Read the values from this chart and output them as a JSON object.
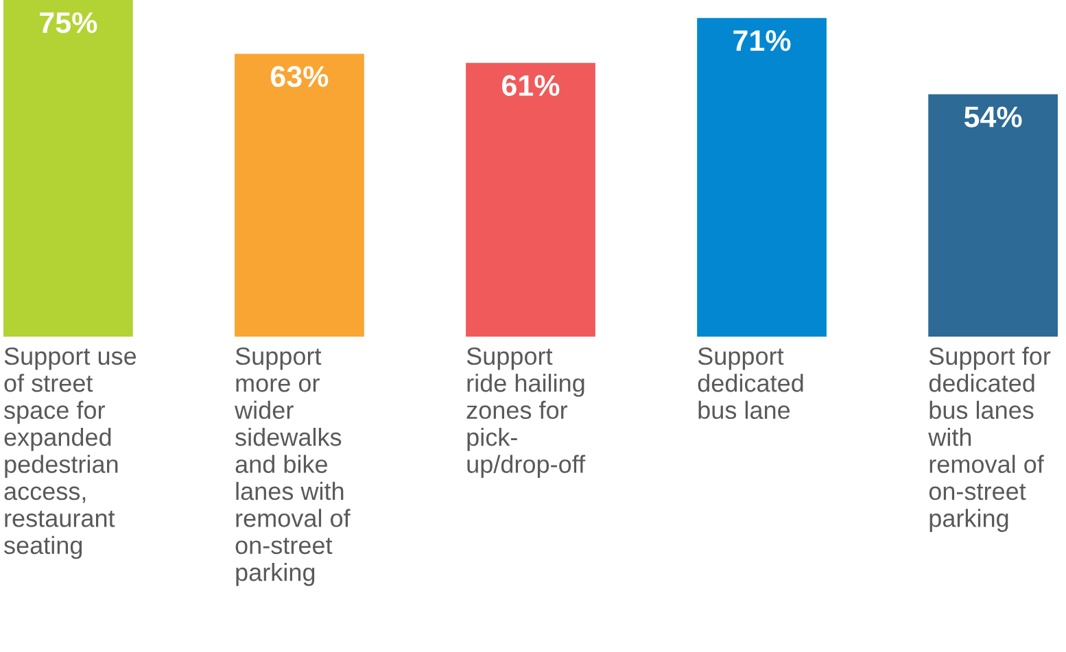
{
  "chart_data": {
    "type": "bar",
    "categories": [
      "Support use\nof street\nspace for\nexpanded\npedestrian\naccess,\nrestaurant\nseating",
      "Support\nmore or\nwider\nsidewalks\nand bike\nlanes with\nremoval of\non-street\nparking",
      "Support\nride hailing\nzones for\npick-\nup/drop-off",
      "Support\ndedicated\nbus lane",
      "Support for\ndedicated\nbus lanes\nwith\nremoval of\non-street\nparking"
    ],
    "values": [
      75,
      63,
      61,
      71,
      54
    ],
    "colors": [
      "#b3d335",
      "#f9a533",
      "#f05a5a",
      "#0287d0",
      "#2d6a96"
    ],
    "value_labels": [
      "75%",
      "63%",
      "61%",
      "71%",
      "54%"
    ]
  }
}
